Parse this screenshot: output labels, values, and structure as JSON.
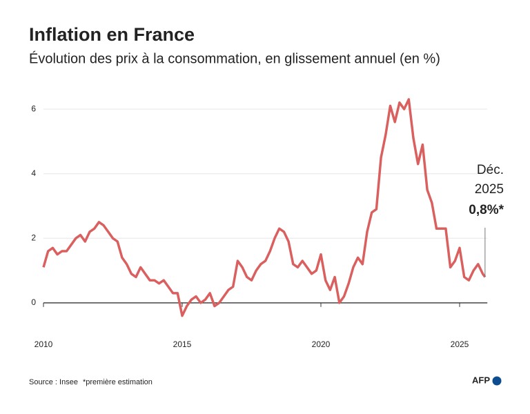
{
  "chart_data": {
    "type": "line",
    "title": "Inflation en France",
    "subtitle": "Évolution des prix à la consommation, en glissement annuel (en %)",
    "x": [
      2010,
      2010.167,
      2010.333,
      2010.5,
      2010.667,
      2010.833,
      2011,
      2011.167,
      2011.333,
      2011.5,
      2011.667,
      2011.833,
      2012,
      2012.167,
      2012.333,
      2012.5,
      2012.667,
      2012.833,
      2013,
      2013.167,
      2013.333,
      2013.5,
      2013.667,
      2013.833,
      2014,
      2014.167,
      2014.333,
      2014.5,
      2014.667,
      2014.833,
      2015,
      2015.167,
      2015.333,
      2015.5,
      2015.667,
      2015.833,
      2016,
      2016.167,
      2016.333,
      2016.5,
      2016.667,
      2016.833,
      2017,
      2017.167,
      2017.333,
      2017.5,
      2017.667,
      2017.833,
      2018,
      2018.167,
      2018.333,
      2018.5,
      2018.667,
      2018.833,
      2019,
      2019.167,
      2019.333,
      2019.5,
      2019.667,
      2019.833,
      2020,
      2020.167,
      2020.333,
      2020.5,
      2020.667,
      2020.833,
      2021,
      2021.167,
      2021.333,
      2021.5,
      2021.667,
      2021.833,
      2022,
      2022.167,
      2022.333,
      2022.5,
      2022.667,
      2022.833,
      2023,
      2023.167,
      2023.333,
      2023.5,
      2023.667,
      2023.833,
      2024,
      2024.167,
      2024.333,
      2024.5,
      2024.667,
      2024.833,
      2025,
      2025.167,
      2025.333,
      2025.5,
      2025.667,
      2025.833,
      2025.917
    ],
    "series": [
      {
        "name": "Inflation",
        "color": "#d9605f",
        "values": [
          1.1,
          1.6,
          1.7,
          1.5,
          1.6,
          1.6,
          1.8,
          2.0,
          2.1,
          1.9,
          2.2,
          2.3,
          2.5,
          2.4,
          2.2,
          2.0,
          1.9,
          1.4,
          1.2,
          0.9,
          0.8,
          1.1,
          0.9,
          0.7,
          0.7,
          0.6,
          0.7,
          0.5,
          0.3,
          0.3,
          -0.4,
          -0.1,
          0.1,
          0.2,
          0.0,
          0.1,
          0.3,
          -0.1,
          0.0,
          0.2,
          0.4,
          0.5,
          1.3,
          1.1,
          0.8,
          0.7,
          1.0,
          1.2,
          1.3,
          1.6,
          2.0,
          2.3,
          2.2,
          1.9,
          1.2,
          1.1,
          1.3,
          1.1,
          0.9,
          1.0,
          1.5,
          0.7,
          0.4,
          0.8,
          0.0,
          0.2,
          0.6,
          1.1,
          1.4,
          1.2,
          2.2,
          2.8,
          2.9,
          4.5,
          5.2,
          6.1,
          5.6,
          6.2,
          6.0,
          6.3,
          5.1,
          4.3,
          4.9,
          3.5,
          3.1,
          2.3,
          2.3,
          2.3,
          1.1,
          1.3,
          1.7,
          0.8,
          0.7,
          1.0,
          1.2,
          0.9,
          0.8
        ]
      }
    ],
    "xlim": [
      2010,
      2026
    ],
    "xticks": [
      2010,
      2015,
      2020,
      2025
    ],
    "ylim": [
      -0.6,
      6.6
    ],
    "yticks": [
      0,
      2,
      4,
      6
    ],
    "grid": true,
    "annotation": {
      "lines": [
        "Déc.",
        "2025"
      ],
      "value_label": "0,8%*"
    },
    "source": "Source : Insee",
    "note": "*première estimation",
    "logo": "AFP"
  }
}
